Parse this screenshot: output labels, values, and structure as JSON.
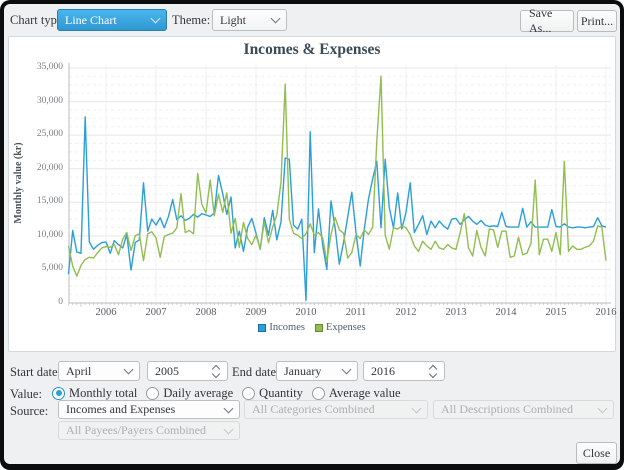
{
  "toolbar": {
    "chart_type_label": "Chart type:",
    "chart_type_value": "Line Chart",
    "theme_label": "Theme:",
    "theme_value": "Light",
    "save_as_label": "Save As...",
    "print_label": "Print..."
  },
  "chart_data": {
    "type": "line",
    "title": "Incomes & Expenses",
    "ylabel": "Monthly value (kr)",
    "ylim": [
      0,
      35000
    ],
    "ytick_step": 5000,
    "yticks": [
      "0",
      "5,000",
      "10,000",
      "15,000",
      "20,000",
      "25,000",
      "30,000",
      "35,000"
    ],
    "xticks": [
      "2006",
      "2007",
      "2008",
      "2009",
      "2010",
      "2011",
      "2012",
      "2013",
      "2014",
      "2015",
      "2016"
    ],
    "x_start": "2005-04",
    "x_end": "2016-01",
    "x_unit": "month",
    "grid": true,
    "legend_position": "bottom",
    "series": [
      {
        "name": "Incomes",
        "color": "#2b9fd8",
        "swatch_border": "#1b6d99",
        "values": [
          4300,
          10800,
          7600,
          7400,
          27700,
          9100,
          8000,
          8600,
          9000,
          9100,
          7400,
          9300,
          8700,
          8200,
          10200,
          4900,
          9000,
          9400,
          17900,
          10700,
          12500,
          11600,
          12700,
          11200,
          12900,
          15400,
          12400,
          13000,
          12300,
          12600,
          13200,
          12800,
          13300,
          13100,
          12900,
          13400,
          19000,
          16300,
          13200,
          15800,
          8200,
          10700,
          7700,
          11300,
          12600,
          10400,
          8000,
          12700,
          10100,
          13800,
          9400,
          12100,
          21600,
          21400,
          11600,
          11000,
          12500,
          400,
          25500,
          7500,
          14000,
          8600,
          5000,
          15200,
          11100,
          5800,
          9000,
          12800,
          16500,
          10500,
          5500,
          11000,
          15500,
          18500,
          21100,
          11200,
          21400,
          14200,
          11200,
          16400,
          11000,
          13500,
          17900,
          10500,
          11700,
          13000,
          10200,
          12200,
          11200,
          12200,
          11500,
          11000,
          12500,
          12600,
          11700,
          12400,
          12900,
          12200,
          11700,
          12300,
          11600,
          11400,
          11500,
          11400,
          13500,
          11400,
          11300,
          11300,
          11300,
          14100,
          11300,
          12100,
          11300,
          11300,
          11300,
          11300,
          13900,
          11400,
          11300,
          11800,
          11300,
          11200,
          11300,
          11300,
          11200,
          11300,
          11400,
          12700,
          11500,
          11300
        ]
      },
      {
        "name": "Expenses",
        "color": "#92bd4f",
        "swatch_border": "#5f8a2d",
        "values": [
          8500,
          5500,
          4000,
          5600,
          6500,
          6800,
          6700,
          7500,
          8200,
          8400,
          8300,
          8700,
          7200,
          9500,
          10500,
          7800,
          10000,
          10300,
          6300,
          10300,
          10600,
          9700,
          6800,
          9900,
          10200,
          10400,
          11200,
          16300,
          10500,
          10800,
          10300,
          19300,
          14700,
          13400,
          18300,
          13000,
          16200,
          13500,
          16400,
          10400,
          12600,
          8300,
          12000,
          9600,
          8700,
          10100,
          8100,
          12100,
          9000,
          11300,
          13100,
          18000,
          32600,
          12500,
          10400,
          10100,
          9600,
          10300,
          11800,
          10100,
          10500,
          9700,
          6200,
          10200,
          12700,
          10900,
          10400,
          6700,
          7500,
          10200,
          9600,
          10900,
          10200,
          11300,
          24100,
          33800,
          10100,
          8000,
          11200,
          11000,
          11500,
          11200,
          10200,
          8500,
          7700,
          9200,
          8500,
          8000,
          9200,
          8200,
          8000,
          8700,
          8200,
          8000,
          10500,
          13300,
          8200,
          7000,
          10800,
          8300,
          7000,
          11000,
          10900,
          8300,
          10700,
          10700,
          6800,
          7000,
          9800,
          7200,
          7400,
          8900,
          18300,
          7200,
          9500,
          9500,
          7700,
          10500,
          7200,
          21100,
          7700,
          8500,
          8000,
          8000,
          8300,
          8500,
          9200,
          11500,
          11300,
          6300
        ]
      }
    ]
  },
  "controls": {
    "start_date_label": "Start date:",
    "start_month": "April",
    "start_year": "2005",
    "end_date_label": "End date:",
    "end_month": "January",
    "end_year": "2016",
    "value_label": "Value:",
    "value_options": [
      {
        "label": "Monthly total",
        "selected": true
      },
      {
        "label": "Daily average",
        "selected": false
      },
      {
        "label": "Quantity",
        "selected": false
      },
      {
        "label": "Average value",
        "selected": false
      }
    ],
    "source_label": "Source:",
    "source_value": "Incomes and Expenses",
    "source_disabled": [
      "All Categories Combined",
      "All Descriptions Combined",
      "All Payees/Payers Combined"
    ]
  },
  "footer": {
    "close_label": "Close"
  },
  "colors": {
    "accent": "#3daee9",
    "window_bg": "#eff0f1",
    "frame": "#0a0c0e"
  }
}
